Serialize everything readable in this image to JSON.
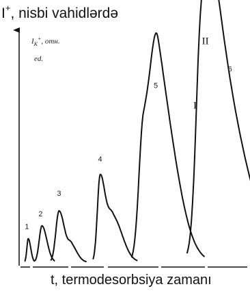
{
  "chart_data": {
    "type": "line",
    "title_main": "I",
    "title_sup": "+",
    "title_rest": ", nisbi vahidlərdə",
    "inner_ylabel_line1": "I",
    "inner_ylabel_sub": "K",
    "inner_ylabel_sup": "+",
    "inner_ylabel_line1_rest": ", отн.",
    "inner_ylabel_line2": "ed.",
    "xlabel": "t, termodesorbsiya zamanı",
    "groups": [
      {
        "label": "1",
        "peaks": [
          {
            "center": 0.04,
            "height": 0.11,
            "width": 0.006
          }
        ]
      },
      {
        "label": "2",
        "peaks": [
          {
            "center": 0.1,
            "height": 0.17,
            "width": 0.012
          }
        ]
      },
      {
        "label": "3",
        "peaks": [
          {
            "center": 0.175,
            "height": 0.24,
            "width": 0.014
          },
          {
            "center": 0.23,
            "height": 0.07,
            "width": 0.014
          }
        ]
      },
      {
        "label": "4",
        "peaks": [
          {
            "center": 0.355,
            "height": 0.4,
            "width": 0.012
          },
          {
            "center": 0.41,
            "height": 0.21,
            "width": 0.022
          }
        ]
      },
      {
        "label": "5",
        "peaks": [
          {
            "center": 0.545,
            "height": 0.63,
            "width": 0.02
          },
          {
            "center": 0.61,
            "height": 0.75,
            "width": 0.03
          }
        ]
      },
      {
        "label": "6",
        "peaks": [
          {
            "center": 0.795,
            "height": 0.66,
            "width": 0.02
          },
          {
            "center": 0.84,
            "height": 0.96,
            "width": 0.04
          }
        ]
      }
    ],
    "roman_labels": [
      "I",
      "II"
    ],
    "xlim": [
      0,
      1
    ],
    "ylim": [
      0,
      1
    ],
    "grid": false,
    "legend": "none",
    "line_color": "#111111"
  }
}
